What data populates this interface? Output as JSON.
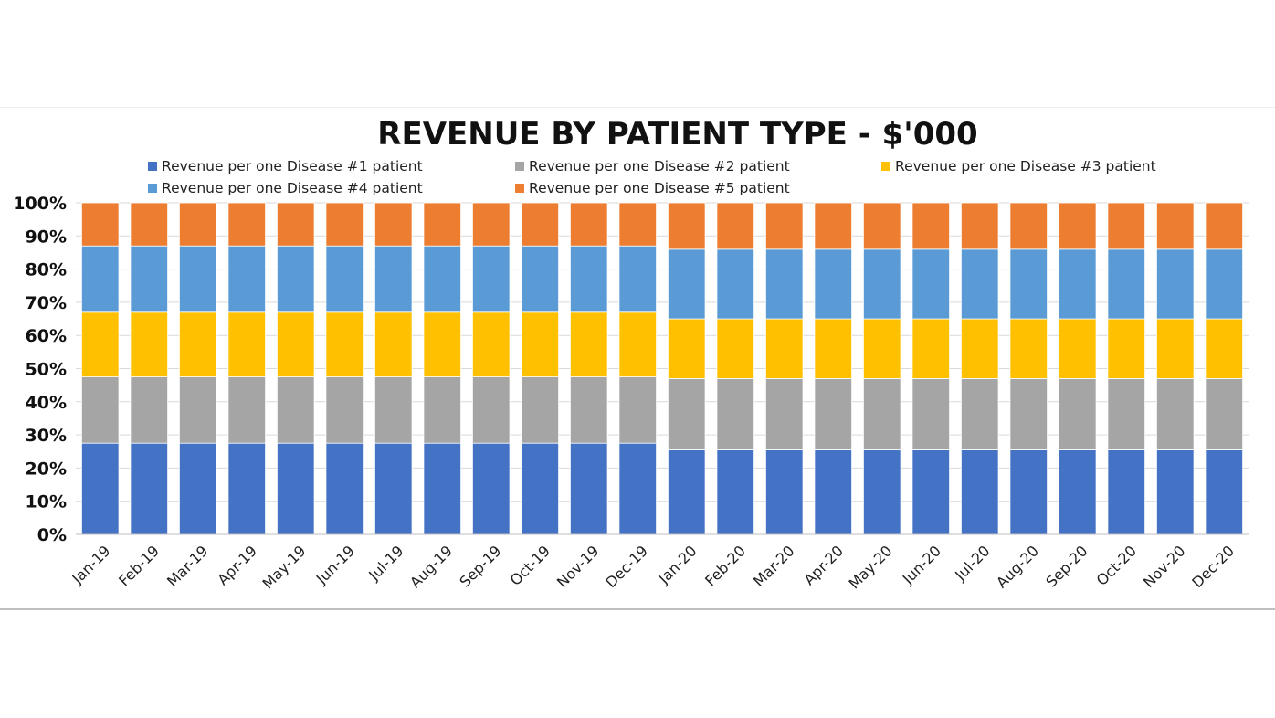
{
  "chart_data": {
    "type": "bar",
    "stacked": "percent",
    "title": "REVENUE BY PATIENT TYPE - $'000",
    "xlabel": "",
    "ylabel": "",
    "ylim": [
      0,
      100
    ],
    "yticks": [
      "0%",
      "10%",
      "20%",
      "30%",
      "40%",
      "50%",
      "60%",
      "70%",
      "80%",
      "90%",
      "100%"
    ],
    "grid": true,
    "legend_position": "top",
    "categories": [
      "Jan-19",
      "Feb-19",
      "Mar-19",
      "Apr-19",
      "May-19",
      "Jun-19",
      "Jul-19",
      "Aug-19",
      "Sep-19",
      "Oct-19",
      "Nov-19",
      "Dec-19",
      "Jan-20",
      "Feb-20",
      "Mar-20",
      "Apr-20",
      "May-20",
      "Jun-20",
      "Jul-20",
      "Aug-20",
      "Sep-20",
      "Oct-20",
      "Nov-20",
      "Dec-20"
    ],
    "series": [
      {
        "name": "Revenue per one Disease #1 patient",
        "color": "#4472C4",
        "values": [
          27.5,
          27.5,
          27.5,
          27.5,
          27.5,
          27.5,
          27.5,
          27.5,
          27.5,
          27.5,
          27.5,
          27.5,
          25.5,
          25.5,
          25.5,
          25.5,
          25.5,
          25.5,
          25.5,
          25.5,
          25.5,
          25.5,
          25.5,
          25.5
        ]
      },
      {
        "name": "Revenue per one Disease #2 patient",
        "color": "#A5A5A5",
        "values": [
          20,
          20,
          20,
          20,
          20,
          20,
          20,
          20,
          20,
          20,
          20,
          20,
          21.5,
          21.5,
          21.5,
          21.5,
          21.5,
          21.5,
          21.5,
          21.5,
          21.5,
          21.5,
          21.5,
          21.5
        ]
      },
      {
        "name": "Revenue per one Disease #3 patient",
        "color": "#FFC000",
        "values": [
          19.5,
          19.5,
          19.5,
          19.5,
          19.5,
          19.5,
          19.5,
          19.5,
          19.5,
          19.5,
          19.5,
          19.5,
          18,
          18,
          18,
          18,
          18,
          18,
          18,
          18,
          18,
          18,
          18,
          18
        ]
      },
      {
        "name": "Revenue per one Disease #4 patient",
        "color": "#5B9BD5",
        "values": [
          20,
          20,
          20,
          20,
          20,
          20,
          20,
          20,
          20,
          20,
          20,
          20,
          21,
          21,
          21,
          21,
          21,
          21,
          21,
          21,
          21,
          21,
          21,
          21
        ]
      },
      {
        "name": "Revenue per one Disease #5 patient",
        "color": "#ED7D31",
        "values": [
          13,
          13,
          13,
          13,
          13,
          13,
          13,
          13,
          13,
          13,
          13,
          13,
          14,
          14,
          14,
          14,
          14,
          14,
          14,
          14,
          14,
          14,
          14,
          14
        ]
      }
    ]
  }
}
